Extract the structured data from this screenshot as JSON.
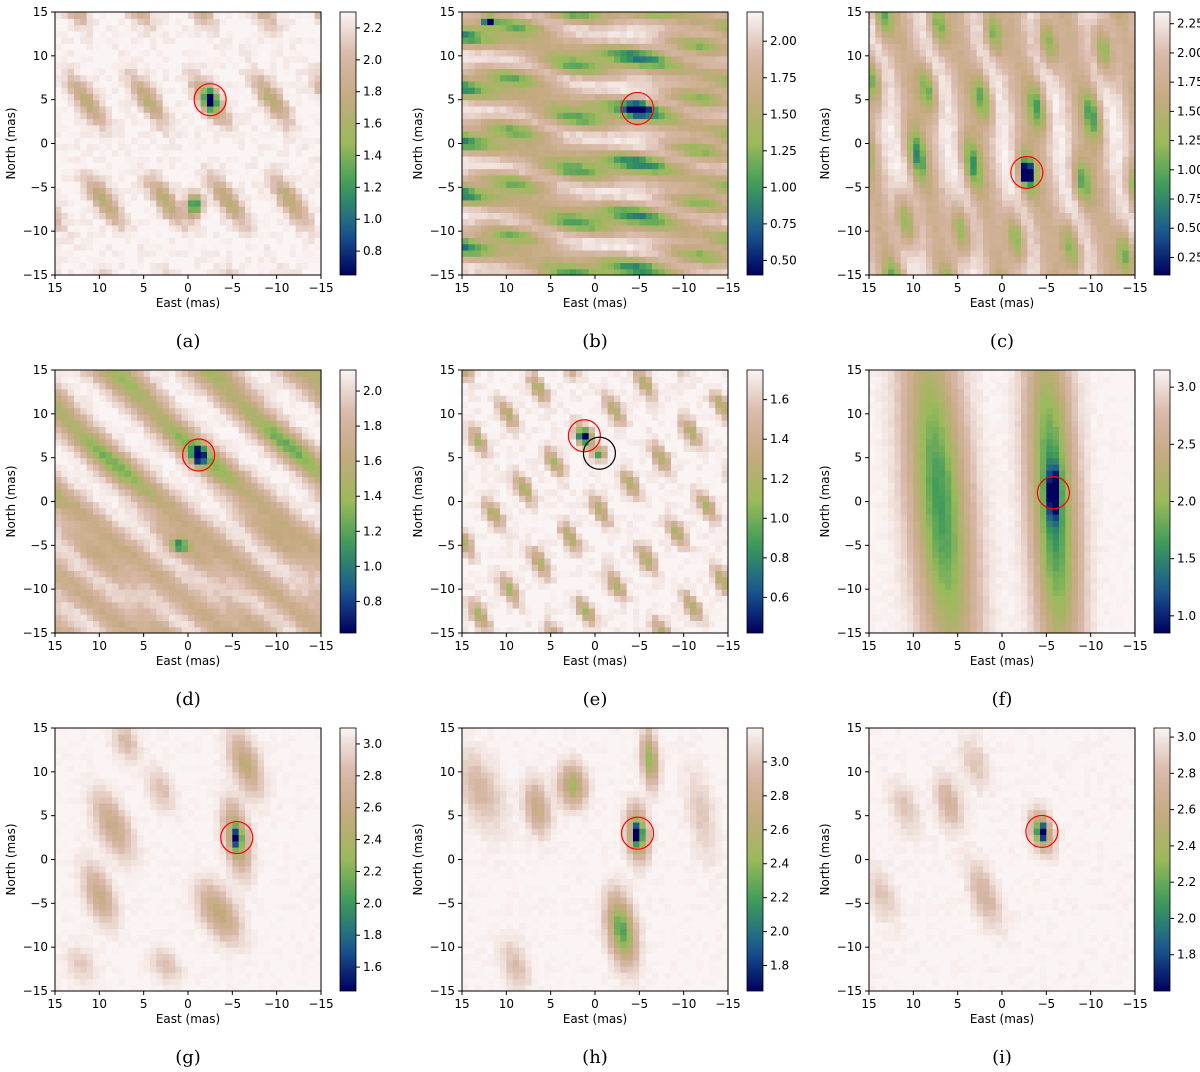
{
  "figure": {
    "colormap": [
      "#000060",
      "#1c5a90",
      "#3a9a5a",
      "#9aba5a",
      "#c4aa80",
      "#d8b8a8",
      "#fbf4f4"
    ],
    "marker_color": "#ff0000",
    "secondary_marker_color": "#000000",
    "grid": false
  },
  "chart_data": [
    {
      "type": "heatmap",
      "panel_label": "(a)",
      "xlabel": "East (mas)",
      "ylabel": "North (mas)",
      "xlim": [
        15,
        -15
      ],
      "ylim": [
        -15,
        15
      ],
      "x_ticks": [
        "15",
        "10",
        "5",
        "0",
        "−5",
        "−10",
        "−15"
      ],
      "y_ticks": [
        "15",
        "10",
        "5",
        "0",
        "−5",
        "−10",
        "−15"
      ],
      "colorbar": {
        "min": 0.65,
        "max": 2.3,
        "ticks": [
          "2.2",
          "2.0",
          "1.8",
          "1.6",
          "1.4",
          "1.2",
          "1.0",
          "0.8"
        ],
        "tick_values": [
          2.2,
          2.0,
          1.8,
          1.6,
          1.4,
          1.2,
          1.0,
          0.8
        ]
      },
      "pattern": {
        "type": "lattice",
        "a1": [
          -12.0,
          11.5
        ],
        "a2": [
          -7.0,
          0.0
        ],
        "origin": [
          -2.5,
          5.0
        ],
        "sigma_major": 2.3,
        "sigma_minor": 0.75,
        "angle": 55,
        "base": 2.3,
        "depth": 0.65,
        "texture": 0.12
      },
      "features": [
        {
          "x": -2.5,
          "y": 5.0,
          "sx": 0.55,
          "sy": 0.9,
          "depth": 1.3
        },
        {
          "x": -0.7,
          "y": -7.0,
          "sx": 0.55,
          "sy": 0.9,
          "depth": 1.3
        }
      ],
      "markers": [
        {
          "x": -2.5,
          "y": 5.0,
          "color": "red"
        }
      ]
    },
    {
      "type": "heatmap",
      "panel_label": "(b)",
      "xlabel": "East (mas)",
      "ylabel": "North (mas)",
      "xlim": [
        15,
        -15
      ],
      "ylim": [
        -15,
        15
      ],
      "x_ticks": [
        "15",
        "10",
        "5",
        "0",
        "−5",
        "−10",
        "−15"
      ],
      "y_ticks": [
        "15",
        "10",
        "5",
        "0",
        "−5",
        "−10",
        "−15"
      ],
      "colorbar": {
        "min": 0.4,
        "max": 2.2,
        "ticks": [
          "2.00",
          "1.75",
          "1.50",
          "1.25",
          "1.00",
          "0.75",
          "0.50"
        ],
        "tick_values": [
          2.0,
          1.75,
          1.5,
          1.25,
          1.0,
          0.75,
          0.5
        ]
      },
      "pattern": {
        "type": "lattice",
        "a1": [
          -7.0,
          1.2
        ],
        "a2": [
          0.0,
          -6.0
        ],
        "origin": [
          -4.8,
          4.0
        ],
        "sigma_major": 3.0,
        "sigma_minor": 0.75,
        "angle": 10,
        "base": 2.2,
        "depth": 0.95,
        "texture": 0.1,
        "stripe": {
          "angle": 10,
          "sigma": 1.05,
          "period": 6.0,
          "offset": 4.0,
          "depth": 0.55
        }
      },
      "features": [
        {
          "x": -4.8,
          "y": 4.0,
          "sx": 0.8,
          "sy": 0.45,
          "depth": 1.6
        },
        {
          "x": 12.0,
          "y": 14.0,
          "sx": 0.5,
          "sy": 0.4,
          "depth": 1.1
        }
      ],
      "markers": [
        {
          "x": -4.8,
          "y": 4.0,
          "color": "red"
        }
      ]
    },
    {
      "type": "heatmap",
      "panel_label": "(c)",
      "xlabel": "East (mas)",
      "ylabel": "North (mas)",
      "xlim": [
        15,
        -15
      ],
      "ylim": [
        -15,
        15
      ],
      "x_ticks": [
        "15",
        "10",
        "5",
        "0",
        "−5",
        "−10",
        "−15"
      ],
      "y_ticks": [
        "15",
        "10",
        "5",
        "0",
        "−5",
        "−10",
        "−15"
      ],
      "colorbar": {
        "min": 0.1,
        "max": 2.35,
        "ticks": [
          "2.25",
          "2.00",
          "1.75",
          "1.50",
          "1.25",
          "1.00",
          "0.75",
          "0.50",
          "0.25"
        ],
        "tick_values": [
          2.25,
          2.0,
          1.75,
          1.5,
          1.25,
          1.0,
          0.75,
          0.5,
          0.25
        ]
      },
      "pattern": {
        "type": "lattice",
        "a1": [
          -6.2,
          -1.0
        ],
        "a2": [
          -1.2,
          7.5
        ],
        "origin": [
          -2.8,
          -3.3
        ],
        "sigma_major": 2.1,
        "sigma_minor": 0.7,
        "angle": 80,
        "base": 2.35,
        "depth": 1.1,
        "texture": 0.1,
        "stripe": {
          "angle": 80,
          "sigma": 1.25,
          "period": 6.2,
          "offset": -2.8,
          "depth": 0.6
        }
      },
      "features": [
        {
          "x": -2.8,
          "y": -3.3,
          "sx": 0.45,
          "sy": 0.7,
          "depth": 2.1
        }
      ],
      "markers": [
        {
          "x": -2.8,
          "y": -3.3,
          "color": "red"
        }
      ]
    },
    {
      "type": "heatmap",
      "panel_label": "(d)",
      "xlabel": "East (mas)",
      "ylabel": "North (mas)",
      "xlim": [
        15,
        -15
      ],
      "ylim": [
        -15,
        15
      ],
      "x_ticks": [
        "15",
        "10",
        "5",
        "0",
        "−5",
        "−10",
        "−15"
      ],
      "y_ticks": [
        "15",
        "10",
        "5",
        "0",
        "−5",
        "−10",
        "−15"
      ],
      "colorbar": {
        "min": 0.62,
        "max": 2.12,
        "ticks": [
          "2.0",
          "1.8",
          "1.6",
          "1.4",
          "1.2",
          "1.0",
          "0.8"
        ],
        "tick_values": [
          2.0,
          1.8,
          1.6,
          1.4,
          1.2,
          1.0,
          0.8
        ]
      },
      "pattern": {
        "type": "lattice",
        "a1": [
          -10.0,
          1.0
        ],
        "a2": [
          1.5,
          -10.5
        ],
        "origin": [
          -1.2,
          5.3
        ],
        "sigma_major": 4.0,
        "sigma_minor": 1.0,
        "angle": 40,
        "base": 2.12,
        "depth": 0.45,
        "texture": 0.08,
        "stripe": {
          "angle": 40,
          "sigma": 1.1,
          "period": 7.0,
          "offset": 5.3,
          "depth": 0.45
        }
      },
      "features": [
        {
          "x": -1.2,
          "y": 5.3,
          "sx": 0.5,
          "sy": 0.7,
          "depth": 1.1
        },
        {
          "x": 1.0,
          "y": -5.0,
          "sx": 0.7,
          "sy": 0.5,
          "depth": 0.7
        }
      ],
      "markers": [
        {
          "x": -1.2,
          "y": 5.3,
          "color": "red"
        }
      ]
    },
    {
      "type": "heatmap",
      "panel_label": "(e)",
      "xlabel": "East (mas)",
      "ylabel": "North (mas)",
      "xlim": [
        15,
        -15
      ],
      "ylim": [
        -15,
        15
      ],
      "x_ticks": [
        "15",
        "10",
        "5",
        "0",
        "−5",
        "−10",
        "−15"
      ],
      "y_ticks": [
        "15",
        "10",
        "5",
        "0",
        "−5",
        "−10",
        "−15"
      ],
      "colorbar": {
        "min": 0.42,
        "max": 1.75,
        "ticks": [
          "1.6",
          "1.4",
          "1.2",
          "1.0",
          "0.8",
          "0.6"
        ],
        "tick_values": [
          1.6,
          1.4,
          1.2,
          1.0,
          0.8,
          0.6
        ]
      },
      "pattern": {
        "type": "lattice",
        "a1": [
          -3.4,
          3.0
        ],
        "a2": [
          -5.2,
          -5.5
        ],
        "origin": [
          1.2,
          7.5
        ],
        "sigma_major": 1.25,
        "sigma_minor": 0.55,
        "angle": 60,
        "base": 1.75,
        "depth": 0.6,
        "texture": 0.1
      },
      "features": [
        {
          "x": 1.2,
          "y": 7.5,
          "sx": 0.5,
          "sy": 0.5,
          "depth": 1.2
        },
        {
          "x": -0.5,
          "y": 5.5,
          "sx": 0.5,
          "sy": 0.5,
          "depth": 0.8
        }
      ],
      "markers": [
        {
          "x": 1.2,
          "y": 7.5,
          "color": "red"
        },
        {
          "x": -0.5,
          "y": 5.5,
          "color": "black"
        }
      ]
    },
    {
      "type": "heatmap",
      "panel_label": "(f)",
      "xlabel": "East (mas)",
      "ylabel": "North (mas)",
      "xlim": [
        15,
        -15
      ],
      "ylim": [
        -15,
        15
      ],
      "x_ticks": [
        "15",
        "10",
        "5",
        "0",
        "−5",
        "−10",
        "−15"
      ],
      "y_ticks": [
        "15",
        "10",
        "5",
        "0",
        "−5",
        "−10",
        "−15"
      ],
      "colorbar": {
        "min": 0.85,
        "max": 3.15,
        "ticks": [
          "3.0",
          "2.5",
          "2.0",
          "1.5",
          "1.0"
        ],
        "tick_values": [
          3.0,
          2.5,
          2.0,
          1.5,
          1.0
        ]
      },
      "pattern": {
        "type": "blobs",
        "base": 3.15,
        "texture": 0.06,
        "items": [
          {
            "x": 7.0,
            "y": 0.0,
            "sx": 2.3,
            "sy": 15.0,
            "angle": 85,
            "depth": 1.5
          },
          {
            "x": -5.8,
            "y": 0.0,
            "sx": 1.8,
            "sy": 14.0,
            "angle": 87,
            "depth": 1.6
          }
        ]
      },
      "features": [
        {
          "x": -5.8,
          "y": 1.0,
          "sx": 0.4,
          "sy": 2.0,
          "depth": 1.5
        }
      ],
      "markers": [
        {
          "x": -5.8,
          "y": 1.0,
          "color": "red"
        }
      ]
    },
    {
      "type": "heatmap",
      "panel_label": "(g)",
      "xlabel": "East (mas)",
      "ylabel": "North (mas)",
      "xlim": [
        15,
        -15
      ],
      "ylim": [
        -15,
        15
      ],
      "x_ticks": [
        "15",
        "10",
        "5",
        "0",
        "−5",
        "−10",
        "−15"
      ],
      "y_ticks": [
        "15",
        "10",
        "5",
        "0",
        "−5",
        "−10",
        "−15"
      ],
      "colorbar": {
        "min": 1.45,
        "max": 3.1,
        "ticks": [
          "3.0",
          "2.8",
          "2.6",
          "2.4",
          "2.2",
          "2.0",
          "1.8",
          "1.6"
        ],
        "tick_values": [
          3.0,
          2.8,
          2.6,
          2.4,
          2.2,
          2.0,
          1.8,
          1.6
        ]
      },
      "pattern": {
        "type": "blobs",
        "base": 3.1,
        "texture": 0.05,
        "items": [
          {
            "x": -5.5,
            "y": 2.5,
            "sx": 0.9,
            "sy": 2.6,
            "angle": 80,
            "depth": 0.8
          },
          {
            "x": -6.5,
            "y": 11.0,
            "sx": 1.0,
            "sy": 2.4,
            "angle": 70,
            "depth": 0.6
          },
          {
            "x": 8.5,
            "y": 4.0,
            "sx": 1.1,
            "sy": 2.6,
            "angle": 65,
            "depth": 0.5
          },
          {
            "x": 10.0,
            "y": -4.0,
            "sx": 1.0,
            "sy": 2.3,
            "angle": 70,
            "depth": 0.5
          },
          {
            "x": -3.5,
            "y": -6.0,
            "sx": 1.2,
            "sy": 2.4,
            "angle": 60,
            "depth": 0.6
          },
          {
            "x": 3.0,
            "y": 8.0,
            "sx": 0.9,
            "sy": 1.8,
            "angle": 70,
            "depth": 0.25
          },
          {
            "x": 7.0,
            "y": 13.5,
            "sx": 0.9,
            "sy": 1.5,
            "angle": 70,
            "depth": 0.3
          },
          {
            "x": 12.0,
            "y": -12.0,
            "sx": 1.0,
            "sy": 1.5,
            "angle": 60,
            "depth": 0.2
          },
          {
            "x": 2.5,
            "y": -12.0,
            "sx": 1.0,
            "sy": 1.5,
            "angle": 60,
            "depth": 0.25
          }
        ]
      },
      "features": [
        {
          "x": -5.5,
          "y": 2.5,
          "sx": 0.35,
          "sy": 0.9,
          "depth": 1.0
        }
      ],
      "markers": [
        {
          "x": -5.5,
          "y": 2.5,
          "color": "red"
        }
      ]
    },
    {
      "type": "heatmap",
      "panel_label": "(h)",
      "xlabel": "East (mas)",
      "ylabel": "North (mas)",
      "xlim": [
        15,
        -15
      ],
      "ylim": [
        -15,
        15
      ],
      "x_ticks": [
        "15",
        "10",
        "5",
        "0",
        "−5",
        "−10",
        "−15"
      ],
      "y_ticks": [
        "15",
        "10",
        "5",
        "0",
        "−5",
        "−10",
        "−15"
      ],
      "colorbar": {
        "min": 1.65,
        "max": 3.2,
        "ticks": [
          "3.0",
          "2.8",
          "2.6",
          "2.4",
          "2.2",
          "2.0",
          "1.8"
        ],
        "tick_values": [
          3.0,
          2.8,
          2.6,
          2.4,
          2.2,
          2.0,
          1.8
        ]
      },
      "pattern": {
        "type": "blobs",
        "base": 3.2,
        "texture": 0.05,
        "items": [
          {
            "x": -4.8,
            "y": 3.0,
            "sx": 0.8,
            "sy": 2.0,
            "angle": 85,
            "depth": 0.9
          },
          {
            "x": -6.2,
            "y": 11.5,
            "sx": 0.6,
            "sy": 2.0,
            "angle": 85,
            "depth": 0.8
          },
          {
            "x": -3.0,
            "y": -8.0,
            "sx": 1.0,
            "sy": 2.6,
            "angle": 80,
            "depth": 1.0
          },
          {
            "x": 2.5,
            "y": 8.5,
            "sx": 1.0,
            "sy": 1.6,
            "angle": 85,
            "depth": 0.7
          },
          {
            "x": 6.5,
            "y": 6.0,
            "sx": 0.9,
            "sy": 2.0,
            "angle": 80,
            "depth": 0.5
          },
          {
            "x": 13.0,
            "y": 8.0,
            "sx": 1.5,
            "sy": 3.0,
            "angle": 70,
            "depth": 0.3
          },
          {
            "x": 9.0,
            "y": -12.0,
            "sx": 1.0,
            "sy": 2.0,
            "angle": 75,
            "depth": 0.25
          },
          {
            "x": -12.0,
            "y": 5.0,
            "sx": 1.0,
            "sy": 3.5,
            "angle": 80,
            "depth": 0.2
          }
        ]
      },
      "features": [
        {
          "x": -4.8,
          "y": 3.0,
          "sx": 0.35,
          "sy": 0.8,
          "depth": 1.1
        }
      ],
      "markers": [
        {
          "x": -4.8,
          "y": 3.0,
          "color": "red"
        }
      ]
    },
    {
      "type": "heatmap",
      "panel_label": "(i)",
      "xlabel": "East (mas)",
      "ylabel": "North (mas)",
      "xlim": [
        15,
        -15
      ],
      "ylim": [
        -15,
        15
      ],
      "x_ticks": [
        "15",
        "10",
        "5",
        "0",
        "−5",
        "−10",
        "−15"
      ],
      "y_ticks": [
        "15",
        "10",
        "5",
        "0",
        "−5",
        "−10",
        "−15"
      ],
      "colorbar": {
        "min": 1.6,
        "max": 3.05,
        "ticks": [
          "3.0",
          "2.8",
          "2.6",
          "2.4",
          "2.2",
          "2.0",
          "1.8"
        ],
        "tick_values": [
          3.0,
          2.8,
          2.6,
          2.4,
          2.2,
          2.0,
          1.8
        ]
      },
      "pattern": {
        "type": "blobs",
        "base": 3.05,
        "texture": 0.05,
        "items": [
          {
            "x": -4.5,
            "y": 3.2,
            "sx": 0.8,
            "sy": 1.6,
            "angle": 75,
            "depth": 0.7
          },
          {
            "x": 6.0,
            "y": 6.5,
            "sx": 0.9,
            "sy": 2.0,
            "angle": 75,
            "depth": 0.35
          },
          {
            "x": 2.0,
            "y": -4.0,
            "sx": 1.0,
            "sy": 2.6,
            "angle": 70,
            "depth": 0.3
          },
          {
            "x": 11.0,
            "y": 6.0,
            "sx": 1.0,
            "sy": 2.0,
            "angle": 70,
            "depth": 0.2
          },
          {
            "x": 13.5,
            "y": -4.0,
            "sx": 1.0,
            "sy": 2.2,
            "angle": 70,
            "depth": 0.2
          },
          {
            "x": 3.0,
            "y": 11.0,
            "sx": 1.0,
            "sy": 2.0,
            "angle": 70,
            "depth": 0.2
          }
        ]
      },
      "features": [
        {
          "x": -4.5,
          "y": 3.2,
          "sx": 0.4,
          "sy": 0.7,
          "depth": 1.1
        }
      ],
      "markers": [
        {
          "x": -4.5,
          "y": 3.2,
          "color": "red"
        }
      ]
    }
  ]
}
